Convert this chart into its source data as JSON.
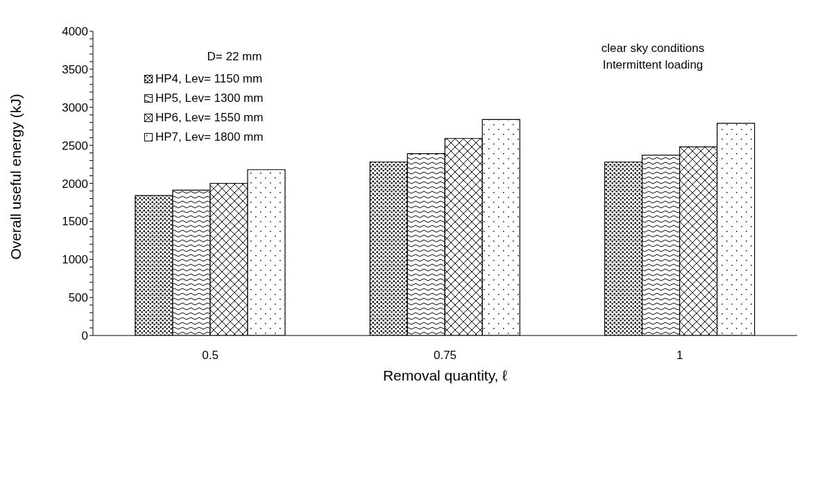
{
  "chart_data": {
    "type": "bar",
    "xlabel": "Removal quantity, ℓ",
    "ylabel": "Overall useful energy (kJ)",
    "legend_title": "D= 22 mm",
    "annotations": [
      "clear sky conditions",
      "Intermittent loading"
    ],
    "categories": [
      "0.5",
      "0.75",
      "1"
    ],
    "series": [
      {
        "name": "HP4, Lev= 1150 mm",
        "color": "#000000",
        "values": [
          1840,
          2280,
          2280
        ]
      },
      {
        "name": "HP5, Lev= 1300 mm",
        "color": "#000000",
        "values": [
          1910,
          2390,
          2370
        ]
      },
      {
        "name": "HP6, Lev= 1550 mm",
        "color": "#000000",
        "values": [
          2000,
          2590,
          2480
        ]
      },
      {
        "name": "HP7, Lev= 1800 mm",
        "color": "#000000",
        "values": [
          2180,
          2840,
          2790
        ]
      }
    ],
    "ylim": [
      0,
      4000
    ],
    "yticks": [
      0,
      {
        "value": 100,
        "label": null
      },
      {
        "value": 200,
        "label": null
      },
      {
        "value": 300,
        "label": null
      },
      {
        "value": 400,
        "label": null
      },
      500,
      {
        "value": 600,
        "label": null
      },
      {
        "value": 700,
        "label": null
      },
      {
        "value": 800,
        "label": null
      },
      {
        "value": 900,
        "label": null
      },
      1000,
      {
        "value": 1100,
        "label": null
      },
      {
        "value": 1200,
        "label": null
      },
      {
        "value": 1300,
        "label": null
      },
      {
        "value": 1400,
        "label": null
      },
      1500,
      {
        "value": 1600,
        "label": null
      },
      {
        "value": 1700,
        "label": null
      },
      {
        "value": 1800,
        "label": null
      },
      {
        "value": 1900,
        "label": null
      },
      2000,
      {
        "value": 2100,
        "label": null
      },
      {
        "value": 2200,
        "label": null
      },
      {
        "value": 2300,
        "label": null
      },
      {
        "value": 2400,
        "label": null
      },
      2500,
      {
        "value": 2600,
        "label": null
      },
      {
        "value": 2700,
        "label": null
      },
      {
        "value": 2800,
        "label": null
      },
      {
        "value": 2900,
        "label": null
      },
      3000,
      {
        "value": 3100,
        "label": null
      },
      {
        "value": 3200,
        "label": null
      },
      {
        "value": 3300,
        "label": null
      },
      {
        "value": 3400,
        "label": null
      },
      3500,
      {
        "value": 3600,
        "label": null
      },
      {
        "value": 3700,
        "label": null
      },
      {
        "value": 3800,
        "label": null
      },
      {
        "value": 3900,
        "label": null
      },
      4000
    ],
    "grid": false,
    "legend": "top left"
  }
}
